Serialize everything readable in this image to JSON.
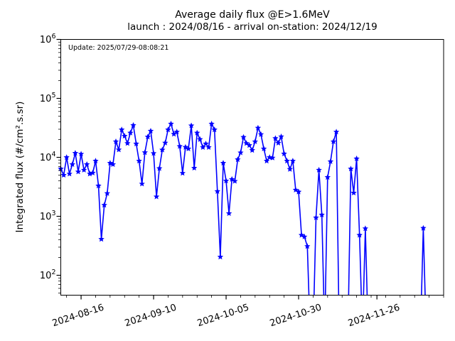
{
  "figure": {
    "title": "Average daily flux @E>1.6MeV",
    "subtitle": "launch : 2024/08/16 - arrival on-station: 2024/12/19",
    "update_note": "Update: 2025/07/29-08:08:21"
  },
  "chart_data": {
    "type": "line",
    "title": "Average daily flux @E>1.6MeV",
    "subtitle": "launch : 2024/08/16 - arrival on-station: 2024/12/19",
    "annotations": [
      "Update: 2025/07/29-08:08:21"
    ],
    "xlabel": "",
    "ylabel": "Integrated flux (#/cm².s.sr)",
    "yscale": "log",
    "grid": false,
    "legend": "none",
    "background_color": "#ffffff",
    "line_color": "#0000ff",
    "marker_style": "star",
    "xlim": [
      "2024-08-09",
      "2024-12-19"
    ],
    "ylim_log10": [
      1.66,
      6
    ],
    "y_tick_exponents": [
      2,
      3,
      4,
      5,
      6
    ],
    "x_major_ticks": [
      "2024-08-16",
      "2024-09-10",
      "2024-10-05",
      "2024-10-30",
      "2024-11-26"
    ],
    "x_minor_tick_every_days": 5,
    "below_range_value": 10,
    "series": [
      {
        "name": "average daily integrated flux",
        "points": [
          [
            "2024-08-09",
            6400
          ],
          [
            "2024-08-10",
            5000
          ],
          [
            "2024-08-11",
            10000
          ],
          [
            "2024-08-12",
            5250
          ],
          [
            "2024-08-13",
            7600
          ],
          [
            "2024-08-14",
            11800
          ],
          [
            "2024-08-15",
            5700
          ],
          [
            "2024-08-16",
            11400
          ],
          [
            "2024-08-17",
            6100
          ],
          [
            "2024-08-18",
            7600
          ],
          [
            "2024-08-19",
            5250
          ],
          [
            "2024-08-20",
            5450
          ],
          [
            "2024-08-21",
            8700
          ],
          [
            "2024-08-22",
            3300
          ],
          [
            "2024-08-23",
            410
          ],
          [
            "2024-08-24",
            1550
          ],
          [
            "2024-08-25",
            2450
          ],
          [
            "2024-08-26",
            8000
          ],
          [
            "2024-08-27",
            7600
          ],
          [
            "2024-08-28",
            18500
          ],
          [
            "2024-08-29",
            13500
          ],
          [
            "2024-08-30",
            29500
          ],
          [
            "2024-08-31",
            23000
          ],
          [
            "2024-09-01",
            17300
          ],
          [
            "2024-09-02",
            26000
          ],
          [
            "2024-09-03",
            35000
          ],
          [
            "2024-09-04",
            17000
          ],
          [
            "2024-09-05",
            8700
          ],
          [
            "2024-09-06",
            3550
          ],
          [
            "2024-09-07",
            12100
          ],
          [
            "2024-09-08",
            22300
          ],
          [
            "2024-09-09",
            28000
          ],
          [
            "2024-09-10",
            11700
          ],
          [
            "2024-09-11",
            2150
          ],
          [
            "2024-09-12",
            6500
          ],
          [
            "2024-09-13",
            13400
          ],
          [
            "2024-09-14",
            17600
          ],
          [
            "2024-09-15",
            29500
          ],
          [
            "2024-09-16",
            37000
          ],
          [
            "2024-09-17",
            24800
          ],
          [
            "2024-09-18",
            27000
          ],
          [
            "2024-09-19",
            15400
          ],
          [
            "2024-09-20",
            5400
          ],
          [
            "2024-09-21",
            14900
          ],
          [
            "2024-09-22",
            14000
          ],
          [
            "2024-09-23",
            34500
          ],
          [
            "2024-09-24",
            6600
          ],
          [
            "2024-09-25",
            26000
          ],
          [
            "2024-09-26",
            20200
          ],
          [
            "2024-09-27",
            14800
          ],
          [
            "2024-09-28",
            17000
          ],
          [
            "2024-09-29",
            14800
          ],
          [
            "2024-09-30",
            37000
          ],
          [
            "2024-10-01",
            29500
          ],
          [
            "2024-10-02",
            2650
          ],
          [
            "2024-10-03",
            205
          ],
          [
            "2024-10-04",
            8000
          ],
          [
            "2024-10-05",
            4000
          ],
          [
            "2024-10-06",
            1120
          ],
          [
            "2024-10-07",
            4250
          ],
          [
            "2024-10-08",
            3950
          ],
          [
            "2024-10-09",
            9200
          ],
          [
            "2024-10-10",
            12000
          ],
          [
            "2024-10-11",
            22000
          ],
          [
            "2024-10-12",
            17300
          ],
          [
            "2024-10-13",
            16000
          ],
          [
            "2024-10-14",
            13200
          ],
          [
            "2024-10-15",
            18500
          ],
          [
            "2024-10-16",
            31500
          ],
          [
            "2024-10-17",
            24500
          ],
          [
            "2024-10-18",
            14000
          ],
          [
            "2024-10-19",
            8700
          ],
          [
            "2024-10-20",
            10000
          ],
          [
            "2024-10-21",
            9800
          ],
          [
            "2024-10-22",
            21000
          ],
          [
            "2024-10-23",
            17500
          ],
          [
            "2024-10-24",
            22500
          ],
          [
            "2024-10-25",
            11500
          ],
          [
            "2024-10-26",
            8700
          ],
          [
            "2024-10-27",
            6300
          ],
          [
            "2024-10-28",
            8700
          ],
          [
            "2024-10-29",
            2800
          ],
          [
            "2024-10-30",
            2600
          ],
          [
            "2024-10-31",
            480
          ],
          [
            "2024-11-01",
            450
          ],
          [
            "2024-11-02",
            310
          ],
          [
            "2024-11-03",
            null
          ],
          [
            "2024-11-04",
            null
          ],
          [
            "2024-11-05",
            950
          ],
          [
            "2024-11-06",
            6100
          ],
          [
            "2024-11-07",
            1060
          ],
          [
            "2024-11-08",
            null
          ],
          [
            "2024-11-09",
            4600
          ],
          [
            "2024-11-10",
            8500
          ],
          [
            "2024-11-11",
            18500
          ],
          [
            "2024-11-12",
            27000
          ],
          [
            "2024-11-13",
            null
          ],
          [
            "2024-11-14",
            null
          ],
          [
            "2024-11-15",
            null
          ],
          [
            "2024-11-16",
            null
          ],
          [
            "2024-11-17",
            6400
          ],
          [
            "2024-11-18",
            2500
          ],
          [
            "2024-11-19",
            9500
          ],
          [
            "2024-11-20",
            480
          ],
          [
            "2024-11-21",
            null
          ],
          [
            "2024-11-22",
            620
          ],
          [
            "2024-11-23",
            null
          ],
          [
            "2024-11-24",
            null
          ],
          [
            "2024-11-25",
            null
          ],
          [
            "2024-11-26",
            null
          ],
          [
            "2024-11-27",
            null
          ],
          [
            "2024-11-28",
            null
          ],
          [
            "2024-11-29",
            null
          ],
          [
            "2024-11-30",
            null
          ],
          [
            "2024-12-01",
            null
          ],
          [
            "2024-12-02",
            null
          ],
          [
            "2024-12-03",
            null
          ],
          [
            "2024-12-04",
            null
          ],
          [
            "2024-12-05",
            null
          ],
          [
            "2024-12-06",
            null
          ],
          [
            "2024-12-07",
            null
          ],
          [
            "2024-12-08",
            null
          ],
          [
            "2024-12-09",
            null
          ],
          [
            "2024-12-10",
            null
          ],
          [
            "2024-12-11",
            null
          ],
          [
            "2024-12-12",
            630
          ],
          [
            "2024-12-13",
            null
          ]
        ]
      }
    ]
  }
}
